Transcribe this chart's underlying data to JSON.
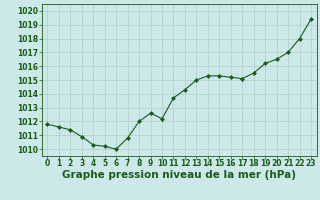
{
  "x": [
    0,
    1,
    2,
    3,
    4,
    5,
    6,
    7,
    8,
    9,
    10,
    11,
    12,
    13,
    14,
    15,
    16,
    17,
    18,
    19,
    20,
    21,
    22,
    23
  ],
  "y": [
    1011.8,
    1011.6,
    1011.4,
    1010.9,
    1010.3,
    1010.2,
    1010.0,
    1010.8,
    1012.0,
    1012.6,
    1012.2,
    1013.7,
    1014.3,
    1015.0,
    1015.3,
    1015.3,
    1015.2,
    1015.1,
    1015.5,
    1016.2,
    1016.5,
    1017.0,
    1018.0,
    1019.4
  ],
  "line_color": "#1a5c1a",
  "marker": "D",
  "marker_size": 2.0,
  "bg_color": "#cce8e8",
  "xlabel": "Graphe pression niveau de la mer (hPa)",
  "xlabel_fontsize": 7.5,
  "tick_fontsize": 5.5,
  "ylim": [
    1009.5,
    1020.5
  ],
  "xlim": [
    -0.5,
    23.5
  ],
  "yticks": [
    1010,
    1011,
    1012,
    1013,
    1014,
    1015,
    1016,
    1017,
    1018,
    1019,
    1020
  ],
  "xticks": [
    0,
    1,
    2,
    3,
    4,
    5,
    6,
    7,
    8,
    9,
    10,
    11,
    12,
    13,
    14,
    15,
    16,
    17,
    18,
    19,
    20,
    21,
    22,
    23
  ]
}
